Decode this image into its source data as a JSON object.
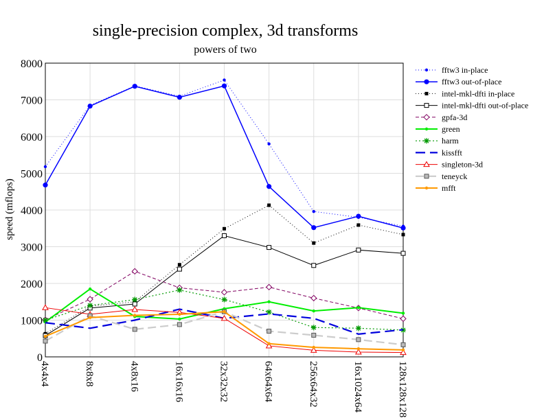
{
  "chart_data": {
    "type": "line",
    "title": "single-precision complex, 3d transforms",
    "subtitle": "powers of two",
    "xlabel": "",
    "ylabel": "speed (mflops)",
    "ylim": [
      0,
      8000
    ],
    "yticks": [
      0,
      1000,
      2000,
      3000,
      4000,
      5000,
      6000,
      7000,
      8000
    ],
    "grid": true,
    "legend_position": "right",
    "categories": [
      "4x4x4",
      "8x8x8",
      "4x8x16",
      "16x16x16",
      "32x32x32",
      "64x64x64",
      "256x64x32",
      "16x1024x64",
      "128x128x128"
    ],
    "series": [
      {
        "name": "fftw3 in-place",
        "color": "#0000ff",
        "dash": "1,3",
        "width": 1,
        "marker": "dot-small",
        "values": [
          5180,
          6850,
          7380,
          7100,
          7540,
          5800,
          3960,
          3800,
          3560
        ]
      },
      {
        "name": "fftw3 out-of-place",
        "color": "#0000ff",
        "dash": "",
        "width": 1.5,
        "marker": "dot-large",
        "values": [
          4680,
          6830,
          7370,
          7070,
          7380,
          4640,
          3520,
          3830,
          3510
        ]
      },
      {
        "name": "intel-mkl-dfti in-place",
        "color": "#000000",
        "dash": "1,3",
        "width": 1,
        "marker": "square-filled",
        "values": [
          630,
          1380,
          1500,
          2510,
          3490,
          4130,
          3100,
          3590,
          3330
        ]
      },
      {
        "name": "intel-mkl-dfti out-of-place",
        "color": "#000000",
        "dash": "",
        "width": 1,
        "marker": "square-open",
        "values": [
          580,
          1330,
          1440,
          2390,
          3300,
          2980,
          2490,
          2910,
          2820
        ]
      },
      {
        "name": "gpfa-3d",
        "color": "#800060",
        "dash": "5,3",
        "width": 1,
        "marker": "diamond-open",
        "values": [
          1010,
          1570,
          2330,
          1880,
          1760,
          1900,
          1600,
          1330,
          1040
        ]
      },
      {
        "name": "green",
        "color": "#00ee00",
        "dash": "",
        "width": 2,
        "marker": "dot-small",
        "values": [
          950,
          1850,
          1100,
          1030,
          1310,
          1500,
          1250,
          1340,
          1190
        ]
      },
      {
        "name": "harm",
        "color": "#009900",
        "dash": "2,3",
        "width": 1.2,
        "marker": "star",
        "values": [
          1000,
          1400,
          1560,
          1820,
          1560,
          1220,
          800,
          780,
          730
        ]
      },
      {
        "name": "kissfft",
        "color": "#0000dd",
        "dash": "14,7",
        "width": 2.2,
        "marker": "none",
        "values": [
          930,
          780,
          1000,
          1300,
          1050,
          1170,
          1050,
          620,
          740
        ]
      },
      {
        "name": "singleton-3d",
        "color": "#ee0000",
        "dash": "",
        "width": 1,
        "marker": "triangle-open",
        "values": [
          1340,
          1160,
          1290,
          1210,
          1050,
          300,
          180,
          130,
          120
        ]
      },
      {
        "name": "teneyck",
        "color": "#cccccc",
        "dash": "12,6",
        "width": 2.2,
        "marker": "square-grey",
        "values": [
          430,
          1120,
          750,
          880,
          1230,
          700,
          590,
          470,
          330
        ]
      },
      {
        "name": "mfft",
        "color": "#ff9900",
        "dash": "",
        "width": 2,
        "marker": "dot-small",
        "values": [
          560,
          1070,
          1130,
          1160,
          1230,
          360,
          260,
          220,
          190
        ]
      }
    ]
  }
}
